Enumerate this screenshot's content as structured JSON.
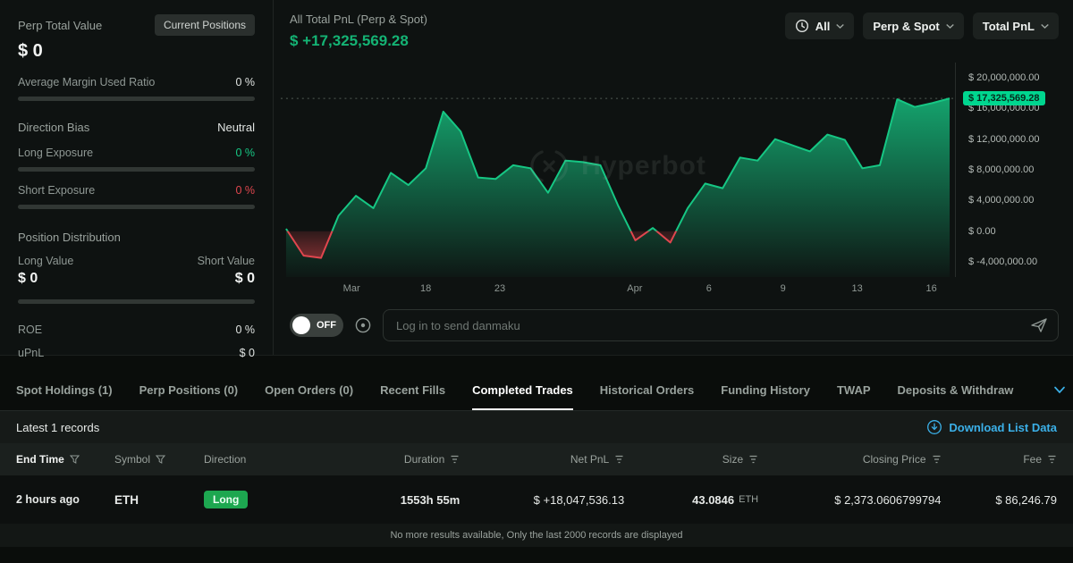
{
  "colors": {
    "green": "#16c784",
    "red": "#e0464e",
    "cyan": "#3bb0e8",
    "badge_green": "#00d68f",
    "long_badge": "#1da750"
  },
  "left_panel": {
    "perp_total_value_label": "Perp Total Value",
    "current_positions_button": "Current Positions",
    "perp_total_value": "$ 0",
    "avg_margin_label": "Average Margin Used Ratio",
    "avg_margin_value": "0 %",
    "direction_bias_label": "Direction Bias",
    "direction_bias_value": "Neutral",
    "long_exposure_label": "Long Exposure",
    "long_exposure_value": "0 %",
    "short_exposure_label": "Short Exposure",
    "short_exposure_value": "0 %",
    "position_distribution_label": "Position Distribution",
    "long_value_label": "Long Value",
    "short_value_label": "Short Value",
    "long_value": "$ 0",
    "short_value": "$ 0",
    "roe_label": "ROE",
    "roe_value": "0 %",
    "upnl_label": "uPnL",
    "upnl_value": "$ 0"
  },
  "chart_panel": {
    "title": "All Total PnL (Perp & Spot)",
    "total_pnl": "$ +17,325,569.28",
    "controls": {
      "time": "All",
      "scope": "Perp & Spot",
      "metric": "Total PnL"
    },
    "watermark": "Hyperbot",
    "danmaku": {
      "toggle_label": "OFF",
      "placeholder": "Log in to send danmaku"
    }
  },
  "chart_data": {
    "type": "area",
    "title": "All Total PnL (Perp & Spot)",
    "series_name": "Total PnL (USD)",
    "current_value": 17325569.28,
    "current_value_label": "$ 17,325,569.28",
    "ylim": [
      -6000000,
      22000000
    ],
    "grid": false,
    "legend": false,
    "y_ticks": [
      {
        "value": 20000000,
        "label": "$ 20,000,000.00"
      },
      {
        "value": 16000000,
        "label": "$ 16,000,000.00"
      },
      {
        "value": 12000000,
        "label": "$ 12,000,000.00"
      },
      {
        "value": 8000000,
        "label": "$ 8,000,000.00"
      },
      {
        "value": 4000000,
        "label": "$ 4,000,000.00"
      },
      {
        "value": 0,
        "label": "$ 0.00"
      },
      {
        "value": -4000000,
        "label": "$ -4,000,000.00"
      }
    ],
    "x_ticks": [
      {
        "label": "Mar",
        "pos": 0.105
      },
      {
        "label": "18",
        "pos": 0.215
      },
      {
        "label": "23",
        "pos": 0.325
      },
      {
        "label": "Apr",
        "pos": 0.525
      },
      {
        "label": "6",
        "pos": 0.635
      },
      {
        "label": "9",
        "pos": 0.745
      },
      {
        "label": "13",
        "pos": 0.855
      },
      {
        "label": "16",
        "pos": 0.965
      }
    ],
    "values": [
      300000,
      -3200000,
      -3500000,
      2000000,
      4600000,
      3000000,
      7600000,
      6000000,
      8200000,
      15600000,
      13000000,
      7000000,
      6800000,
      8600000,
      8200000,
      5000000,
      9200000,
      9000000,
      8600000,
      3400000,
      -1200000,
      400000,
      -1500000,
      3000000,
      6200000,
      5600000,
      9600000,
      9200000,
      12000000,
      11200000,
      10400000,
      12600000,
      11900000,
      8200000,
      8600000,
      17200000,
      16200000,
      16700000,
      17325569.28
    ]
  },
  "tabs": {
    "items": [
      "Spot Holdings (1)",
      "Perp Positions (0)",
      "Open Orders (0)",
      "Recent Fills",
      "Completed Trades",
      "Historical Orders",
      "Funding History",
      "TWAP",
      "Deposits & Withdraw"
    ],
    "active": "Completed Trades"
  },
  "records_bar": {
    "label": "Latest 1 records",
    "download_label": "Download List Data"
  },
  "table": {
    "columns": [
      {
        "label": "End Time",
        "filter": true
      },
      {
        "label": "Symbol",
        "filter": true
      },
      {
        "label": "Direction",
        "filter": false
      },
      {
        "label": "Duration",
        "filter": true
      },
      {
        "label": "Net PnL",
        "filter": true
      },
      {
        "label": "Size",
        "filter": true
      },
      {
        "label": "Closing Price",
        "filter": true
      },
      {
        "label": "Fee",
        "filter": true
      }
    ],
    "rows": [
      {
        "end_time": "2 hours ago",
        "symbol": "ETH",
        "direction": "Long",
        "duration": "1553h 55m",
        "net_pnl": "$ +18,047,536.13",
        "size_value": "43.0846",
        "size_unit": "ETH",
        "closing_price": "$ 2,373.0606799794",
        "fee": "$ 86,246.79"
      }
    ]
  },
  "footer_note": "No more results available, Only the last 2000 records are displayed"
}
